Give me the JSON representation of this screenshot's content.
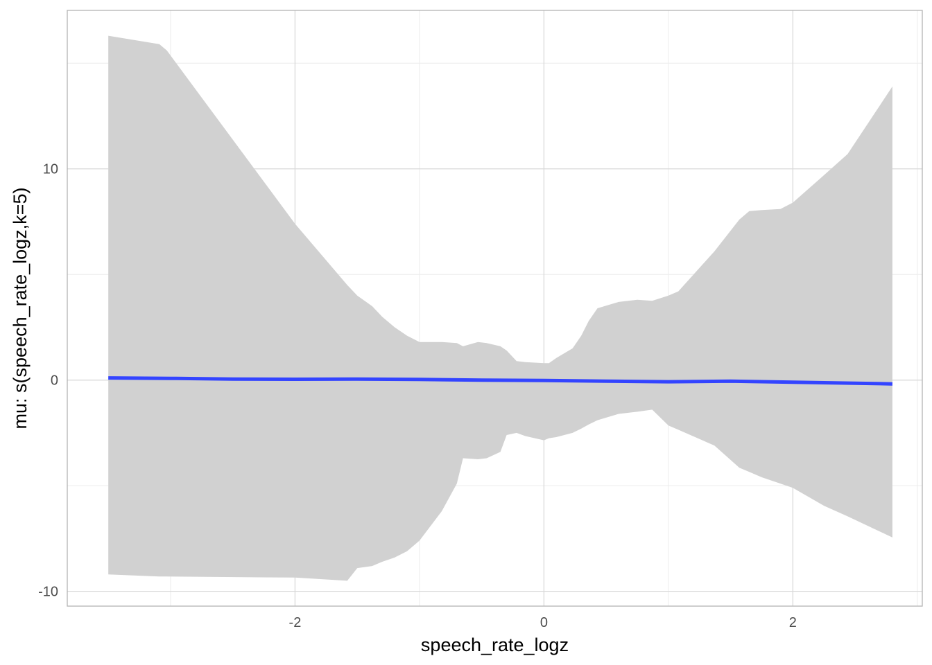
{
  "chart_data": {
    "type": "line",
    "title": "",
    "xlabel": "speech_rate_logz",
    "ylabel": "mu: s(speech_rate_logz,k=5)",
    "xlim": [
      -3.83,
      3.04
    ],
    "ylim": [
      -10.7,
      17.5
    ],
    "x_ticks": [
      -2,
      0,
      2
    ],
    "x_tick_labels": [
      "-2",
      "0",
      "2"
    ],
    "y_ticks": [
      -10,
      0,
      10
    ],
    "y_tick_labels": [
      "-10",
      "0",
      "10"
    ],
    "grid": true,
    "legend": "none",
    "colors": {
      "line": "#3344ff",
      "ribbon": "#d1d1d1",
      "grid_major": "#d9d9d9",
      "grid_minor": "#ececec",
      "panel_border": "#b3b3b3"
    },
    "series": [
      {
        "type": "line",
        "x": [
          -3.5,
          -3.0,
          -2.5,
          -2.0,
          -1.5,
          -1.0,
          -0.5,
          0.0,
          0.5,
          1.0,
          1.5,
          2.0,
          2.5,
          2.8
        ],
        "y": [
          0.1,
          0.08,
          0.05,
          0.04,
          0.05,
          0.03,
          0.0,
          -0.02,
          -0.05,
          -0.08,
          -0.05,
          -0.1,
          -0.15,
          -0.18
        ]
      },
      {
        "type": "ribbon",
        "x": [
          -3.5,
          -3.09,
          -3.03,
          -2.0,
          -1.58,
          -1.5,
          -1.38,
          -1.3,
          -1.2,
          -1.1,
          -1.0,
          -0.82,
          -0.7,
          -0.65,
          -0.53,
          -0.46,
          -0.35,
          -0.3,
          -0.22,
          -0.15,
          0.0,
          0.04,
          0.1,
          0.23,
          0.3,
          0.36,
          0.43,
          0.6,
          0.75,
          0.87,
          1.0,
          1.08,
          1.37,
          1.57,
          1.65,
          1.75,
          1.9,
          2.0,
          2.25,
          2.44,
          2.8
        ],
        "upper": [
          16.3,
          15.9,
          15.6,
          7.4,
          4.5,
          4.0,
          3.5,
          3.0,
          2.5,
          2.1,
          1.8,
          1.8,
          1.75,
          1.6,
          1.8,
          1.75,
          1.6,
          1.4,
          0.9,
          0.85,
          0.8,
          0.8,
          1.05,
          1.5,
          2.1,
          2.8,
          3.4,
          3.7,
          3.8,
          3.75,
          4.0,
          4.2,
          6.1,
          7.6,
          8.0,
          8.05,
          8.1,
          8.4,
          9.7,
          10.7,
          13.9
        ],
        "lower": [
          -9.2,
          -9.3,
          -9.3,
          -9.35,
          -9.5,
          -8.9,
          -8.8,
          -8.6,
          -8.4,
          -8.1,
          -7.6,
          -6.2,
          -4.9,
          -3.7,
          -3.75,
          -3.7,
          -3.4,
          -2.6,
          -2.5,
          -2.65,
          -2.85,
          -2.75,
          -2.7,
          -2.5,
          -2.3,
          -2.1,
          -1.9,
          -1.6,
          -1.5,
          -1.4,
          -2.15,
          -2.35,
          -3.1,
          -4.15,
          -4.35,
          -4.6,
          -4.9,
          -5.1,
          -5.95,
          -6.45,
          -7.45
        ]
      }
    ]
  }
}
